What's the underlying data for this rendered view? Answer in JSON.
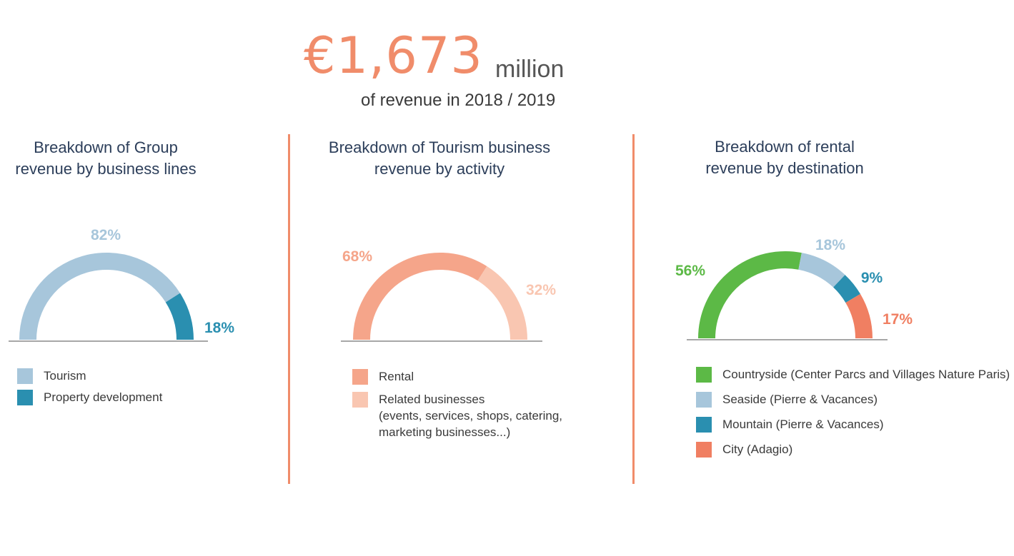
{
  "headline": {
    "amount": "€1,673",
    "unit": "million",
    "subtitle": "of revenue in 2018 / 2019",
    "accent_color": "#f08c6a"
  },
  "divider_color": "#f08c6a",
  "baseline_color": "#8a8a8a",
  "charts": [
    {
      "title_lines": [
        "Breakdown of Group",
        "revenue by business lines"
      ],
      "legend": [
        {
          "lines": [
            "Tourism"
          ]
        },
        {
          "lines": [
            "Property development"
          ]
        }
      ]
    },
    {
      "title_lines": [
        "Breakdown of Tourism business",
        "revenue by activity"
      ],
      "legend": [
        {
          "lines": [
            "Rental"
          ]
        },
        {
          "lines": [
            "Related businesses",
            "(events, services, shops, catering,",
            "marketing businesses...)"
          ]
        }
      ]
    },
    {
      "title_lines": [
        "Breakdown of rental",
        "revenue by destination"
      ],
      "legend": [
        {
          "lines": [
            "Countryside (Center Parcs and Villages Nature Paris)"
          ]
        },
        {
          "lines": [
            "Seaside (Pierre & Vacances)"
          ]
        },
        {
          "lines": [
            "Mountain (Pierre & Vacances)"
          ]
        },
        {
          "lines": [
            "City (Adagio)"
          ]
        }
      ]
    }
  ],
  "chart_data": [
    {
      "type": "pie",
      "style": "half-donut",
      "title": "Breakdown of Group revenue by business lines",
      "categories": [
        "Tourism",
        "Property development"
      ],
      "values": [
        82,
        18
      ],
      "labels": [
        "82%",
        "18%"
      ],
      "colors": [
        "#a7c6db",
        "#2a8fb0"
      ],
      "legend_position": "bottom-left"
    },
    {
      "type": "pie",
      "style": "half-donut",
      "title": "Breakdown of Tourism business revenue by activity",
      "categories": [
        "Rental",
        "Related businesses (events, services, shops, catering, marketing businesses...)"
      ],
      "values": [
        68,
        32
      ],
      "labels": [
        "68%",
        "32%"
      ],
      "colors": [
        "#f5a58a",
        "#f9c6b1"
      ],
      "legend_position": "bottom-left"
    },
    {
      "type": "pie",
      "style": "half-donut",
      "title": "Breakdown of rental revenue by destination",
      "categories": [
        "Countryside (Center Parcs and Villages Nature Paris)",
        "Seaside (Pierre & Vacances)",
        "Mountain (Pierre & Vacances)",
        "City (Adagio)"
      ],
      "values": [
        56,
        18,
        9,
        17
      ],
      "labels": [
        "56%",
        "18%",
        "9%",
        "17%"
      ],
      "colors": [
        "#5cb946",
        "#a7c6db",
        "#2a8fb0",
        "#f07f62"
      ],
      "legend_position": "bottom-left"
    }
  ]
}
